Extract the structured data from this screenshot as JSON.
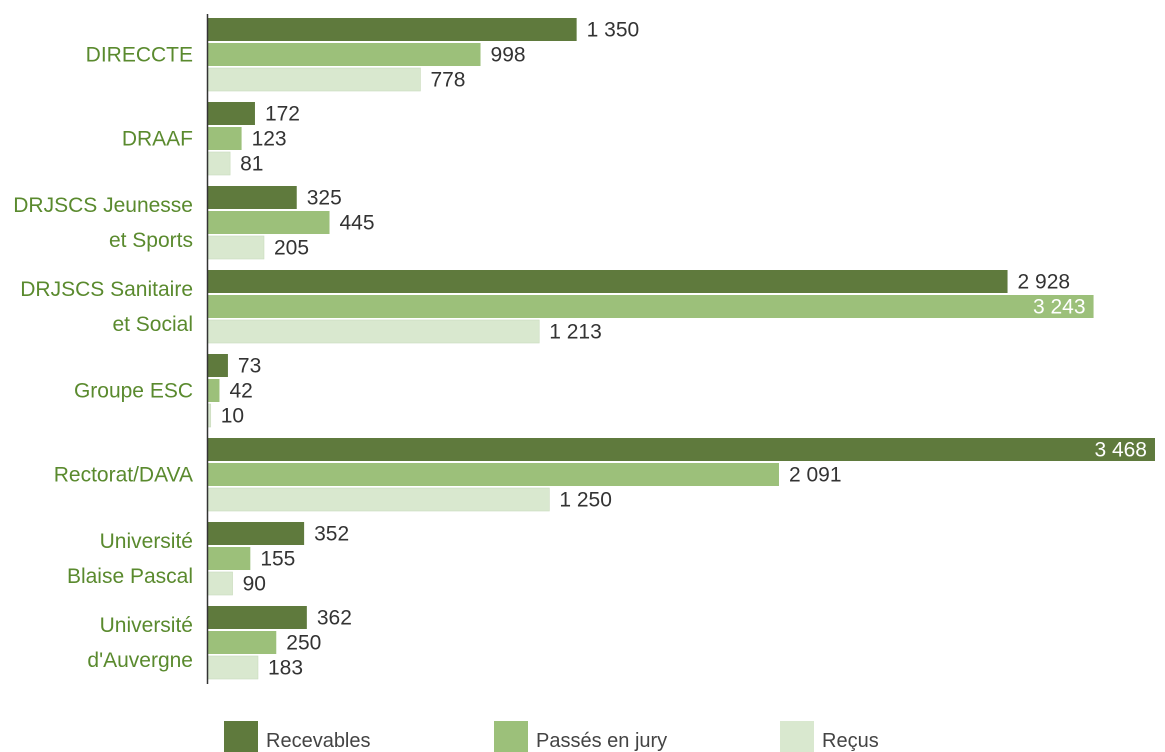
{
  "chart_data": {
    "type": "bar",
    "orientation": "horizontal",
    "categories": [
      [
        "DIRECCTE"
      ],
      [
        "DRAAF"
      ],
      [
        "DRJSCS Jeunesse",
        "et Sports"
      ],
      [
        "DRJSCS Sanitaire",
        "et Social"
      ],
      [
        "Groupe ESC"
      ],
      [
        "Rectorat/DAVA"
      ],
      [
        "Université",
        "Blaise Pascal"
      ],
      [
        "Université",
        "d'Auvergne"
      ]
    ],
    "series": [
      {
        "name": "Recevables",
        "color": "#5f7a3d",
        "values": [
          1350,
          172,
          325,
          2928,
          73,
          3468,
          352,
          362
        ],
        "labels": [
          "1 350",
          "172",
          "325",
          "2 928",
          "73",
          "3 468",
          "352",
          "362"
        ]
      },
      {
        "name": "Passés en jury",
        "color": "#9cc07a",
        "values": [
          998,
          123,
          445,
          3243,
          42,
          2091,
          155,
          250
        ],
        "labels": [
          "998",
          "123",
          "445",
          "3 243",
          "42",
          "2 091",
          "155",
          "250"
        ]
      },
      {
        "name": "Reçus",
        "color": "#d9e8cf",
        "values": [
          778,
          81,
          205,
          1213,
          10,
          1250,
          90,
          183
        ],
        "labels": [
          "778",
          "81",
          "205",
          "1 213",
          "10",
          "1 250",
          "90",
          "183"
        ]
      }
    ],
    "xlim": [
      0,
      3468
    ],
    "grid": false,
    "legend": "bottom"
  }
}
